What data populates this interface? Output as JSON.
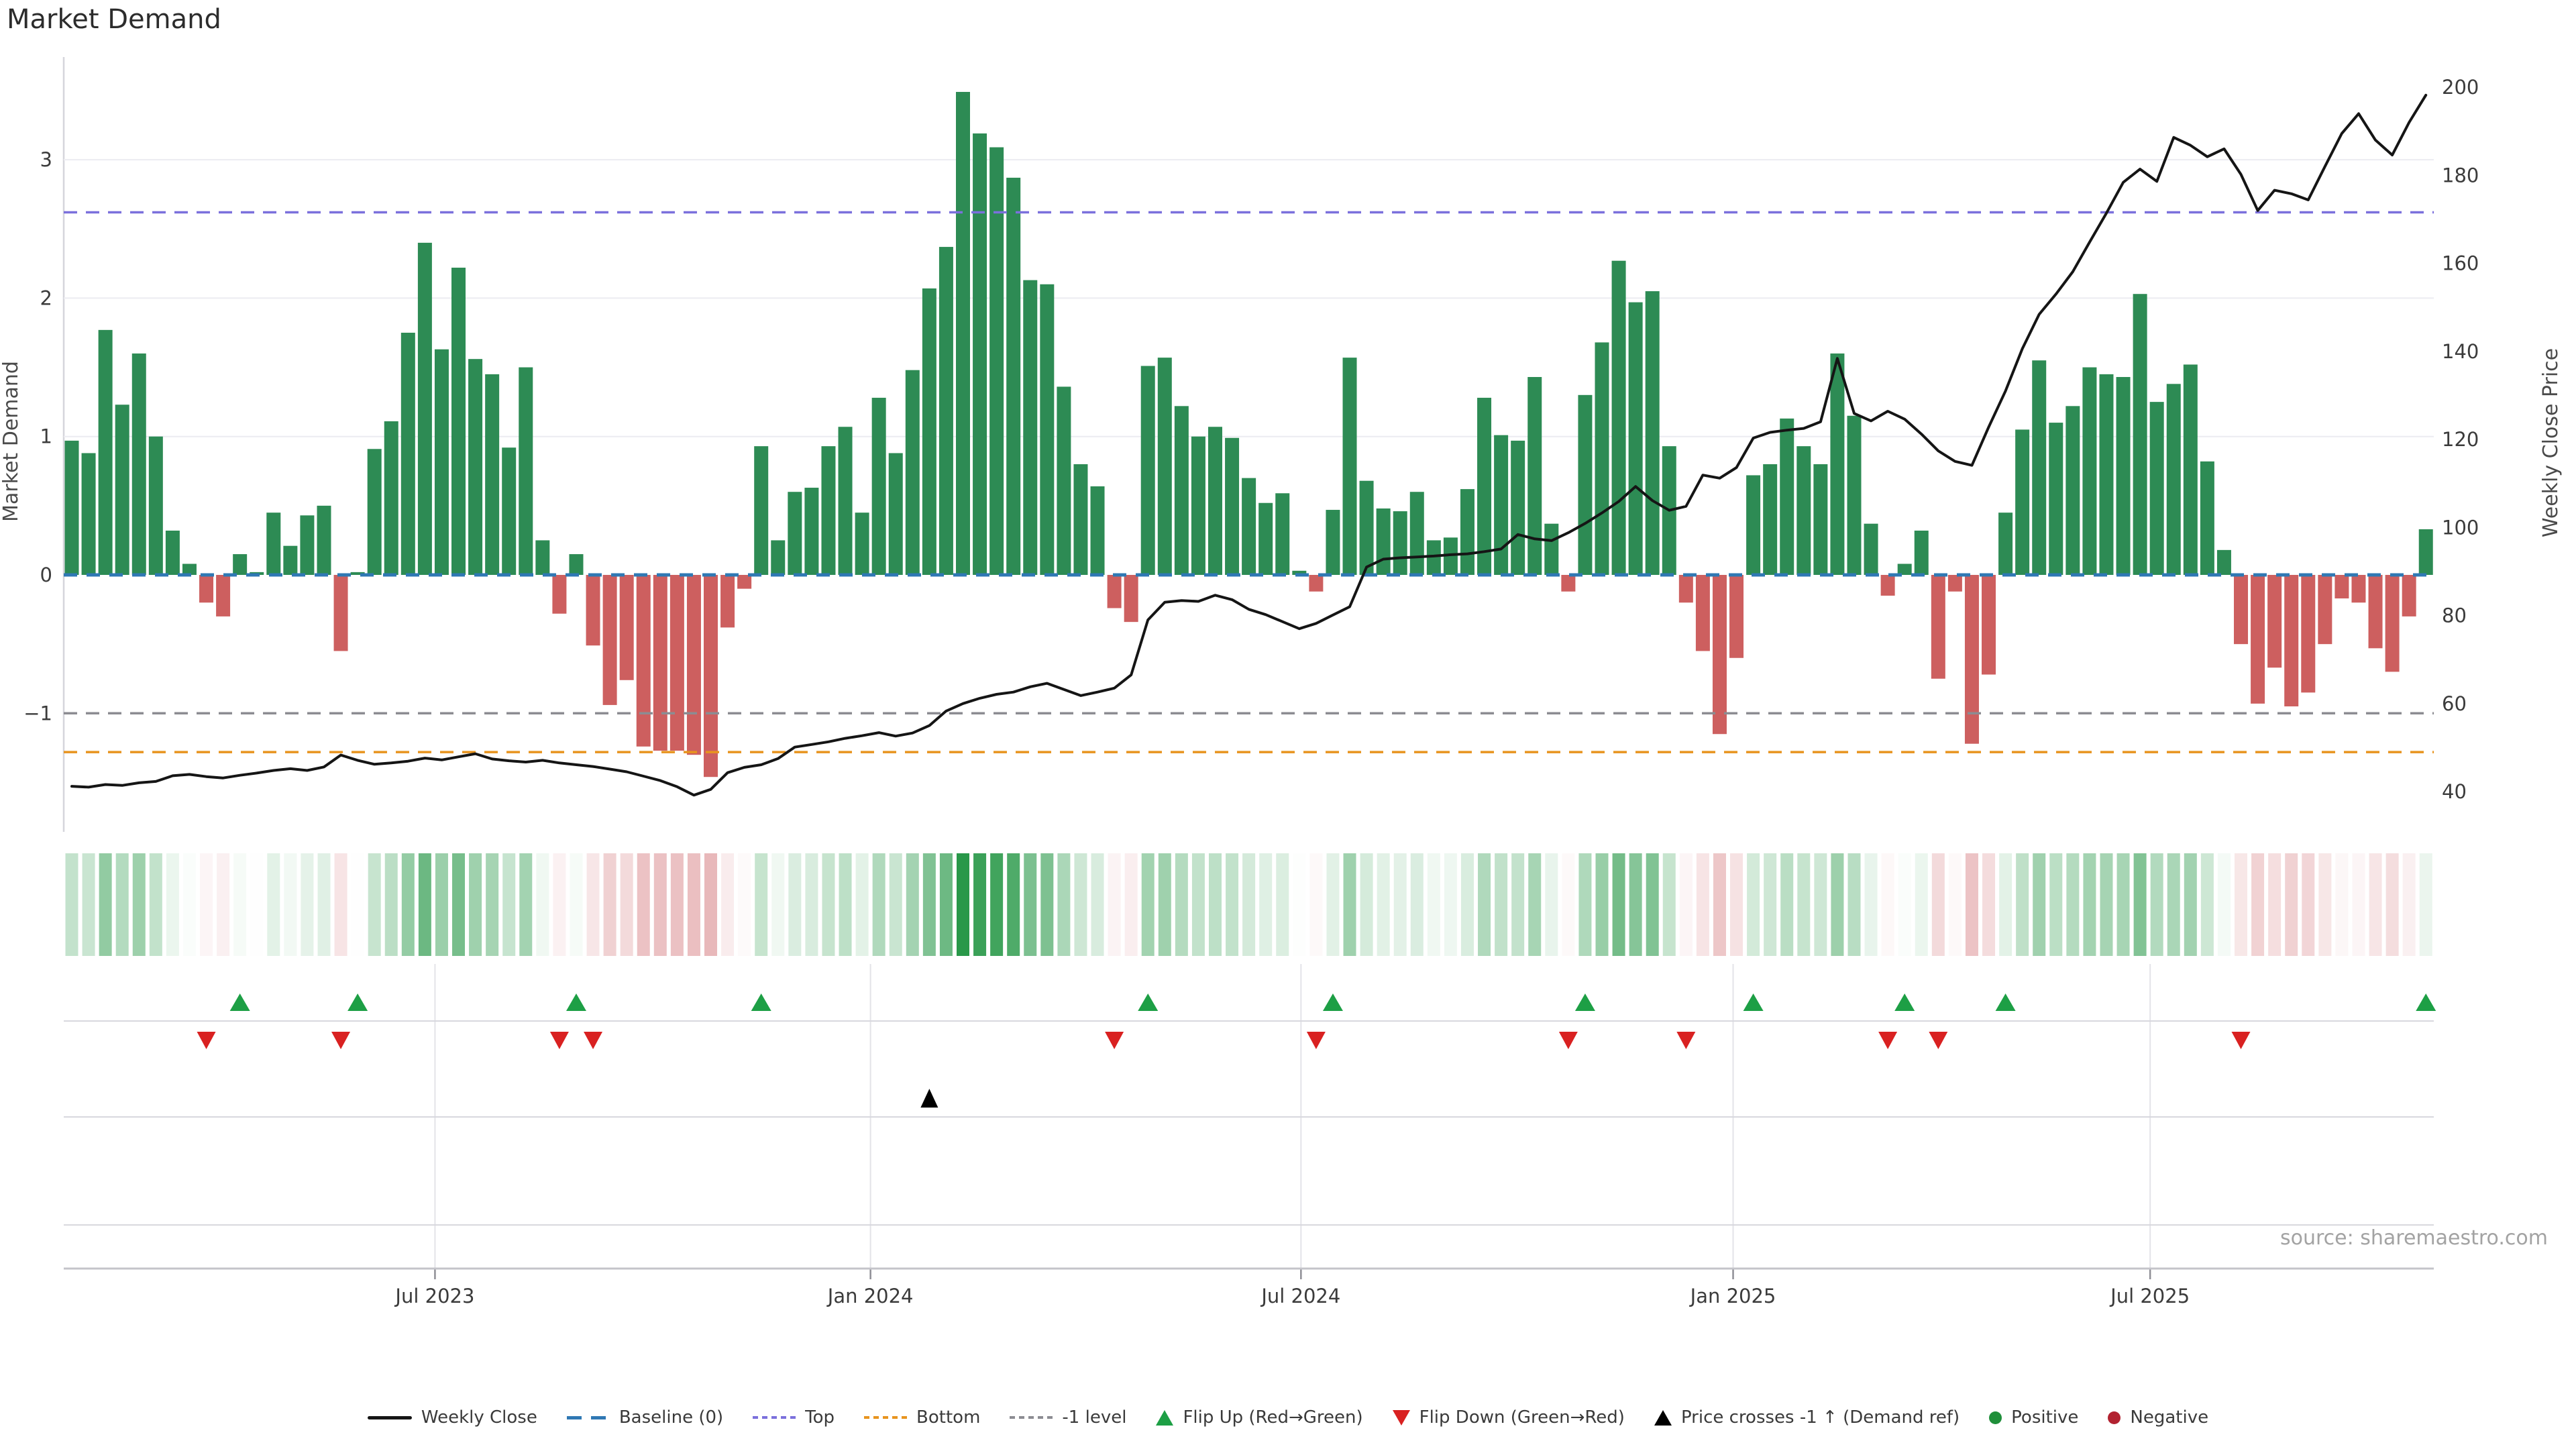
{
  "title": "Market Demand",
  "source_text": "source: sharemaestro.com",
  "axes": {
    "left_label": "Market Demand",
    "right_label": "Weekly Close Price",
    "left_ticks": [
      {
        "label": "3",
        "value": 3
      },
      {
        "label": "2",
        "value": 2
      },
      {
        "label": "1",
        "value": 1
      },
      {
        "label": "0",
        "value": 0
      },
      {
        "label": "−1",
        "value": -1
      }
    ],
    "right_ticks": [
      200,
      180,
      160,
      140,
      120,
      100,
      80,
      60,
      40
    ],
    "x_ticks": [
      {
        "label": "Jul 2023",
        "index": 21.6
      },
      {
        "label": "Jan 2024",
        "index": 47.5
      },
      {
        "label": "Jul 2024",
        "index": 73.1
      },
      {
        "label": "Jan 2025",
        "index": 98.8
      },
      {
        "label": "Jul 2025",
        "index": 123.6
      }
    ]
  },
  "colors": {
    "bar_positive": "#2d8b54",
    "bar_negative": "#cd5f5f",
    "price_line": "#151515",
    "baseline": "#2f78b4",
    "top_line": "#7b70dc",
    "bottom_line": "#e8941f",
    "minus1_line": "#8c8c92",
    "flip_up_marker": "#1d9f45",
    "flip_down_marker": "#d92121",
    "price_cross_marker": "#000000",
    "positive_dot": "#1f8f3a",
    "negative_dot": "#b22230",
    "grid": "#ececf1",
    "panel_line": "#d8d8de",
    "axis_line": "#c4c4ca",
    "heat_positive_max": "#289848",
    "heat_negative_max": "#c95459",
    "tick_text": "#3b3b3b",
    "axis_label_text": "#4a4a4a"
  },
  "legend": [
    {
      "label": "Weekly Close",
      "marker": "line",
      "color": "#151515"
    },
    {
      "label": "Baseline (0)",
      "marker": "dashes",
      "color": "#2f78b4"
    },
    {
      "label": "Top",
      "marker": "dots",
      "color": "#7b70dc"
    },
    {
      "label": "Bottom",
      "marker": "dots",
      "color": "#e8941f"
    },
    {
      "label": "-1 level",
      "marker": "dots",
      "color": "#8c8c92"
    },
    {
      "label": "Flip Up (Red→Green)",
      "marker": "tri-up",
      "color": "#1d9f45"
    },
    {
      "label": "Flip Down (Green→Red)",
      "marker": "tri-down",
      "color": "#d92121"
    },
    {
      "label": "Price crosses -1 ↑ (Demand ref)",
      "marker": "tri-up",
      "color": "#000000"
    },
    {
      "label": "Positive",
      "marker": "dot",
      "color": "#1f8f3a"
    },
    {
      "label": "Negative",
      "marker": "dot",
      "color": "#b22230"
    }
  ],
  "chart_data": {
    "type": "bar",
    "subtype": "bar+line+heatmap combo, weekly frequency Feb 2023 - Oct 2025",
    "title": "Market Demand",
    "xlabel": "",
    "ylabel_left": "Market Demand",
    "ylabel_right": "Weekly Close Price",
    "ylim_left": [
      -1.61,
      3.74
    ],
    "ylim_right": [
      38.5,
      206.9
    ],
    "baseline_level": 0,
    "top_level": 2.62,
    "bottom_level": -1.28,
    "minus1_level": -1,
    "grid": "horizontal at 1,2,3; vertical month lines in lower panels only",
    "legend_position": "bottom center",
    "demand_values": [
      0.97,
      0.88,
      1.77,
      1.23,
      1.6,
      1.0,
      0.32,
      0.08,
      -0.2,
      -0.3,
      0.15,
      0.02,
      0.45,
      0.21,
      0.43,
      0.5,
      -0.55,
      0.02,
      0.91,
      1.11,
      1.75,
      2.4,
      1.63,
      2.22,
      1.56,
      1.45,
      0.92,
      1.5,
      0.25,
      -0.28,
      0.15,
      -0.51,
      -0.94,
      -0.76,
      -1.24,
      -1.27,
      -1.27,
      -1.3,
      -1.46,
      -0.38,
      -0.1,
      0.93,
      0.25,
      0.6,
      0.63,
      0.93,
      1.07,
      0.45,
      1.28,
      0.88,
      1.48,
      2.07,
      2.37,
      3.49,
      3.19,
      3.09,
      2.87,
      2.13,
      2.1,
      1.36,
      0.8,
      0.64,
      -0.24,
      -0.34,
      1.51,
      1.57,
      1.22,
      1.0,
      1.07,
      0.99,
      0.7,
      0.52,
      0.59,
      0.03,
      -0.12,
      0.47,
      1.57,
      0.68,
      0.48,
      0.46,
      0.6,
      0.25,
      0.27,
      0.62,
      1.28,
      1.01,
      0.97,
      1.43,
      0.37,
      -0.12,
      1.3,
      1.68,
      2.27,
      1.97,
      2.05,
      0.93,
      -0.2,
      -0.55,
      -1.15,
      -0.6,
      0.72,
      0.8,
      1.13,
      0.93,
      0.8,
      1.6,
      1.15,
      0.37,
      -0.15,
      0.08,
      0.32,
      -0.75,
      -0.12,
      -1.22,
      -0.72,
      0.45,
      1.05,
      1.55,
      1.1,
      1.22,
      1.5,
      1.45,
      1.43,
      2.03,
      1.25,
      1.38,
      1.52,
      0.82,
      0.18,
      -0.5,
      -0.93,
      -0.67,
      -0.95,
      -0.85,
      -0.5,
      -0.17,
      -0.2,
      -0.53,
      -0.7,
      -0.3,
      0.33
    ],
    "price_values": [
      41.2,
      41.0,
      41.6,
      41.4,
      42.0,
      42.3,
      43.6,
      43.9,
      43.4,
      43.1,
      43.7,
      44.2,
      44.8,
      45.2,
      44.8,
      45.6,
      48.3,
      47.1,
      46.2,
      46.5,
      46.9,
      47.6,
      47.2,
      47.9,
      48.6,
      47.4,
      47.0,
      46.7,
      47.1,
      46.5,
      46.1,
      45.7,
      45.1,
      44.5,
      43.5,
      42.5,
      41.1,
      39.2,
      40.5,
      44.3,
      45.5,
      46.1,
      47.5,
      50.1,
      50.7,
      51.3,
      52.1,
      52.7,
      53.4,
      52.6,
      53.3,
      55.0,
      58.3,
      60.0,
      61.2,
      62.1,
      62.6,
      63.8,
      64.6,
      63.2,
      61.8,
      62.6,
      63.5,
      66.5,
      79.0,
      83.0,
      83.4,
      83.2,
      84.6,
      83.6,
      81.4,
      80.2,
      78.6,
      77.0,
      78.2,
      80.1,
      82.0,
      91.0,
      92.8,
      93.1,
      93.3,
      93.5,
      93.8,
      94.0,
      94.5,
      95.1,
      98.4,
      97.4,
      97.0,
      98.8,
      100.9,
      103.3,
      105.9,
      109.3,
      106.1,
      103.9,
      104.8,
      111.9,
      111.2,
      113.6,
      120.3,
      121.6,
      122.1,
      122.5,
      124.0,
      138.4,
      125.9,
      124.2,
      126.4,
      124.6,
      121.2,
      117.4,
      115.0,
      114.1,
      122.8,
      131.0,
      140.6,
      148.4,
      153.0,
      158.1,
      164.8,
      171.4,
      178.4,
      181.4,
      178.6,
      188.6,
      186.8,
      184.2,
      186.0,
      180.2,
      172.0,
      176.6,
      175.8,
      174.4,
      182.0,
      189.5,
      194.0,
      188.0,
      184.6,
      192.0,
      198.2
    ],
    "flip_up_indices": [
      10,
      17,
      30,
      41,
      64,
      75,
      90,
      100,
      109,
      115,
      140
    ],
    "flip_down_indices": [
      8,
      16,
      29,
      31,
      62,
      74,
      89,
      96,
      108,
      111,
      129
    ],
    "price_cross_indices": [
      51
    ],
    "heatmap": "one cell per week, white-to-green for positive demand, white-to-red for negative, intensity = |value|/3.5"
  }
}
